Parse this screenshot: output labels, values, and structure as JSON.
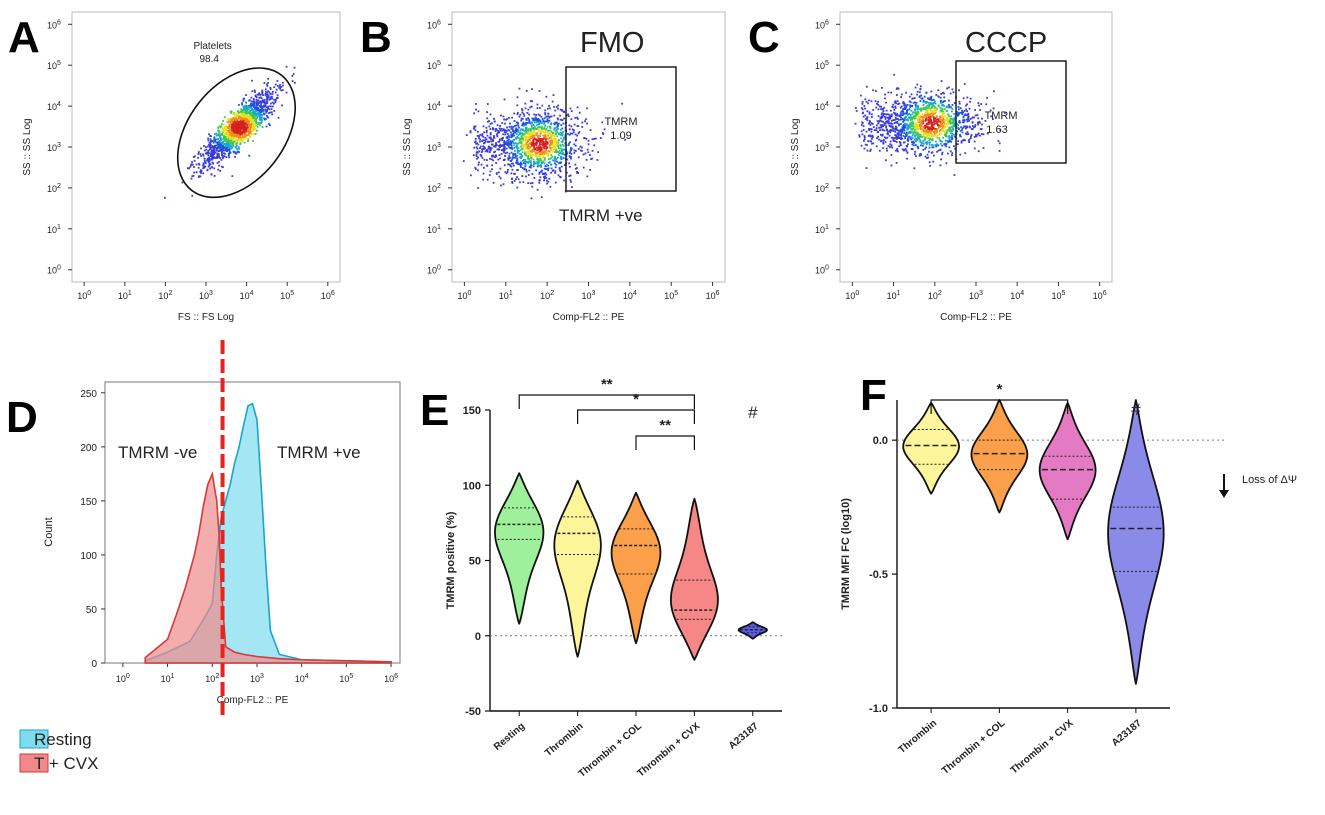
{
  "panels": {
    "A": {
      "letter": "A"
    },
    "B": {
      "letter": "B"
    },
    "C": {
      "letter": "C"
    },
    "D": {
      "letter": "D"
    },
    "E": {
      "letter": "E"
    },
    "F": {
      "letter": "F"
    }
  },
  "chart_data": [
    {
      "id": "A",
      "type": "scatter",
      "title": "",
      "xlabel": "FS :: FS Log",
      "ylabel": "SS :: SS Log",
      "x_ticks": [
        "0",
        "1",
        "2",
        "3",
        "4",
        "5",
        "6"
      ],
      "y_ticks": [
        "0",
        "1",
        "2",
        "3",
        "4",
        "5",
        "6"
      ],
      "tick_base": "10",
      "gate": {
        "name": "Platelets",
        "value": "98.4",
        "shape": "ellipse"
      },
      "cluster": {
        "x_center_log": 3.8,
        "y_center_log": 3.5
      }
    },
    {
      "id": "B",
      "type": "scatter",
      "title": "FMO",
      "xlabel": "Comp-FL2 :: PE",
      "ylabel": "SS :: SS Log",
      "x_ticks": [
        "0",
        "1",
        "2",
        "3",
        "4",
        "5",
        "6"
      ],
      "y_ticks": [
        "0",
        "1",
        "2",
        "3",
        "4",
        "5",
        "6"
      ],
      "tick_base": "10",
      "gate": {
        "name": "TMRM",
        "value": "1.09",
        "shape": "rectangle",
        "label": "TMRM +ve"
      },
      "cluster": {
        "x_center_log": 1.8,
        "y_center_log": 3.1
      }
    },
    {
      "id": "C",
      "type": "scatter",
      "title": "CCCP",
      "xlabel": "Comp-FL2 :: PE",
      "ylabel": "SS :: SS Log",
      "x_ticks": [
        "0",
        "1",
        "2",
        "3",
        "4",
        "5",
        "6"
      ],
      "y_ticks": [
        "0",
        "1",
        "2",
        "3",
        "4",
        "5",
        "6"
      ],
      "tick_base": "10",
      "gate": {
        "name": "TMRM",
        "value": "1.63",
        "shape": "rectangle"
      },
      "cluster": {
        "x_center_log": 1.9,
        "y_center_log": 3.6
      }
    },
    {
      "id": "D",
      "type": "area",
      "title": "",
      "xlabel": "Comp-FL2 :: PE",
      "ylabel": "Count",
      "x_ticks": [
        "0",
        "1",
        "2",
        "3",
        "4",
        "5",
        "6"
      ],
      "tick_base": "10",
      "y_ticks": [
        "0",
        "50",
        "100",
        "150",
        "200",
        "250"
      ],
      "ylim": [
        0,
        260
      ],
      "labels": {
        "negative": "TMRM -ve",
        "positive": "TMRM +ve"
      },
      "legend": [
        {
          "name": "Resting",
          "color": "#7fdcef"
        },
        {
          "name": "T + CVX",
          "color": "#f08a8a"
        }
      ],
      "series": [
        {
          "name": "Resting",
          "color": "#7fdcef",
          "x": [
            0.5,
            1.0,
            1.5,
            1.8,
            2.0,
            2.1,
            2.2,
            2.3,
            2.4,
            2.5,
            2.6,
            2.7,
            2.8,
            2.9,
            3.0,
            3.1,
            3.2,
            3.3,
            3.5,
            4.0,
            5.0,
            6.0
          ],
          "y": [
            2,
            10,
            20,
            40,
            55,
            100,
            135,
            150,
            165,
            185,
            200,
            220,
            238,
            240,
            225,
            160,
            90,
            30,
            8,
            3,
            2,
            1
          ]
        },
        {
          "name": "T + CVX",
          "color": "#f08a8a",
          "x": [
            0.5,
            1.0,
            1.2,
            1.4,
            1.6,
            1.7,
            1.8,
            1.9,
            2.0,
            2.1,
            2.15,
            2.2,
            2.3,
            2.5,
            2.7,
            3.0,
            3.5,
            4.0,
            5.0,
            6.0
          ],
          "y": [
            5,
            22,
            45,
            70,
            100,
            120,
            145,
            165,
            175,
            150,
            120,
            70,
            15,
            10,
            8,
            6,
            4,
            3,
            2,
            1
          ]
        }
      ],
      "cutoff_x": 2.23
    },
    {
      "id": "E",
      "type": "violin",
      "ylabel": "TMRM positive (%)",
      "ylim": [
        -50,
        150
      ],
      "y_ticks": [
        "-50",
        "0",
        "50",
        "100",
        "150"
      ],
      "categories": [
        "Resting",
        "Thrombin",
        "Thrombin + COL",
        "Thrombin + CVX",
        "A23187"
      ],
      "colors": [
        "#9ef09a",
        "#fcf59a",
        "#fb9f4a",
        "#f58787",
        "#5a5ae6"
      ],
      "violins": [
        {
          "min": 8,
          "max": 108,
          "median": 74,
          "q1": 64,
          "q3": 85
        },
        {
          "min": -14,
          "max": 103,
          "median": 68,
          "q1": 54,
          "q3": 79
        },
        {
          "min": -5,
          "max": 95,
          "median": 60,
          "q1": 41,
          "q3": 71
        },
        {
          "min": -16,
          "max": 91,
          "median": 17,
          "q1": 11,
          "q3": 37
        },
        {
          "min": -2,
          "max": 9,
          "median": 4,
          "q1": 2,
          "q3": 6
        }
      ],
      "significance": [
        {
          "from": "Resting",
          "to": "Thrombin + CVX",
          "label": "**"
        },
        {
          "from": "Thrombin",
          "to": "Thrombin + CVX",
          "label": "*"
        },
        {
          "from": "Thrombin + COL",
          "to": "Thrombin + CVX",
          "label": "**"
        }
      ],
      "annotation": "#"
    },
    {
      "id": "F",
      "type": "violin",
      "ylabel": "TMRM MFI FC (log10)",
      "ylim": [
        -1.0,
        0.15
      ],
      "y_ticks": [
        "-1.0",
        "-0.5",
        "0.0"
      ],
      "categories": [
        "Thrombin",
        "Thrombin + COL",
        "Thrombin + CVX",
        "A23187"
      ],
      "colors": [
        "#fcf59a",
        "#fb9f4a",
        "#e47ac4",
        "#8a8ae8"
      ],
      "violins": [
        {
          "min": -0.2,
          "max": 0.14,
          "median": -0.02,
          "q1": -0.09,
          "q3": 0.04
        },
        {
          "min": -0.27,
          "max": 0.15,
          "median": -0.05,
          "q1": -0.11,
          "q3": 0.0
        },
        {
          "min": -0.37,
          "max": 0.14,
          "median": -0.11,
          "q1": -0.22,
          "q3": -0.06
        },
        {
          "min": -0.91,
          "max": 0.15,
          "median": -0.33,
          "q1": -0.49,
          "q3": -0.25
        }
      ],
      "significance": [
        {
          "from": "Thrombin",
          "to": "Thrombin + CVX",
          "label": "*"
        }
      ],
      "annotation": "#",
      "note": "Loss of ΔΨ"
    }
  ]
}
